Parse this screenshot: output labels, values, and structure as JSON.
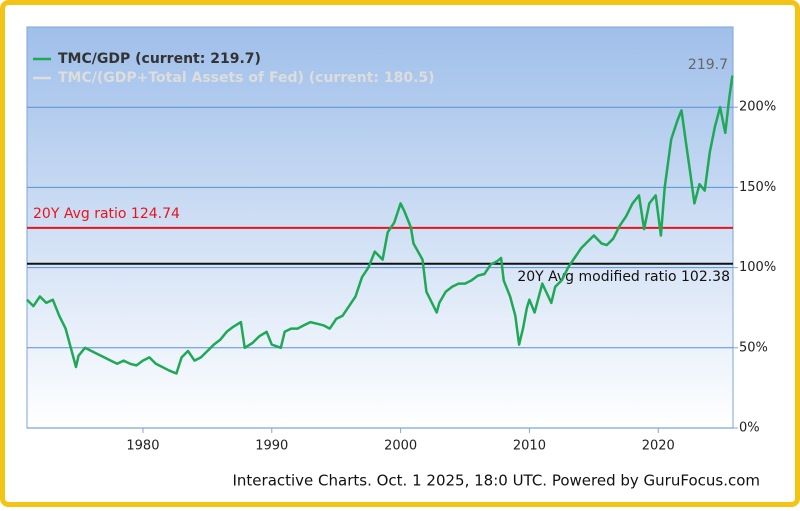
{
  "chart_data": {
    "type": "line",
    "series": [
      {
        "name": "TMC/GDP (current: 219.7)",
        "color": "#1fa855",
        "x": [
          1971,
          1971.5,
          1972,
          1972.5,
          1973,
          1973.5,
          1974,
          1974.4,
          1974.8,
          1975,
          1975.5,
          1976,
          1976.5,
          1977,
          1977.5,
          1978,
          1978.5,
          1979,
          1979.5,
          1980,
          1980.5,
          1981,
          1981.5,
          1982,
          1982.6,
          1983,
          1983.5,
          1984,
          1984.5,
          1985,
          1985.5,
          1986,
          1986.5,
          1987,
          1987.6,
          1987.9,
          1988.5,
          1989,
          1989.6,
          1990,
          1990.7,
          1991,
          1991.5,
          1992,
          1992.5,
          1993,
          1993.5,
          1994,
          1994.5,
          1995,
          1995.5,
          1996,
          1996.5,
          1997,
          1997.5,
          1998,
          1998.6,
          1999,
          1999.5,
          2000,
          2000.3,
          2000.8,
          2001,
          2001.7,
          2002,
          2002.8,
          2003,
          2003.5,
          2004,
          2004.5,
          2005,
          2005.5,
          2006,
          2006.5,
          2007,
          2007.5,
          2007.8,
          2008,
          2008.5,
          2008.9,
          2009.2,
          2009.5,
          2009.8,
          2010,
          2010.4,
          2011,
          2011.7,
          2012,
          2012.5,
          2013,
          2013.5,
          2014,
          2014.5,
          2015,
          2015.6,
          2016,
          2016.5,
          2017,
          2017.5,
          2018,
          2018.5,
          2018.9,
          2019.3,
          2019.8,
          2020.2,
          2020.5,
          2021,
          2021.5,
          2021.8,
          2022.2,
          2022.5,
          2022.8,
          2023.2,
          2023.6,
          2024,
          2024.4,
          2024.8,
          2025.2,
          2025.5,
          2025.75
        ],
        "values": [
          80,
          76,
          82,
          78,
          80,
          70,
          62,
          50,
          38,
          45,
          50,
          48,
          46,
          44,
          42,
          40,
          42,
          40,
          39,
          42,
          44,
          40,
          38,
          36,
          34,
          44,
          48,
          42,
          44,
          48,
          52,
          55,
          60,
          63,
          66,
          50,
          53,
          57,
          60,
          52,
          50,
          60,
          62,
          62,
          64,
          66,
          65,
          64,
          62,
          68,
          70,
          76,
          82,
          94,
          100,
          110,
          105,
          122,
          128,
          140,
          135,
          125,
          115,
          105,
          85,
          72,
          78,
          85,
          88,
          90,
          90,
          92,
          95,
          96,
          102,
          104,
          106,
          92,
          82,
          70,
          52,
          62,
          75,
          80,
          72,
          90,
          78,
          88,
          92,
          100,
          106,
          112,
          116,
          120,
          115,
          114,
          118,
          126,
          132,
          140,
          145,
          124,
          140,
          145,
          120,
          150,
          180,
          192,
          198,
          175,
          158,
          140,
          152,
          148,
          172,
          188,
          200,
          184,
          205,
          219.7
        ]
      }
    ],
    "hidden_series": [
      {
        "name": "TMC/(GDP+Total Assets of Fed) (current: 180.5)",
        "color": "#dddddd"
      }
    ],
    "reference_lines": [
      {
        "label": "20Y Avg ratio 124.74",
        "value": 124.74,
        "color": "#e8141c"
      },
      {
        "label": "20Y Avg modified ratio 102.38",
        "value": 102.38,
        "color": "#111111"
      }
    ],
    "xlim": [
      1971,
      2025.8
    ],
    "xticks": [
      1980,
      1990,
      2000,
      2010,
      2020
    ],
    "ylim": [
      0,
      250
    ],
    "yticks": [
      {
        "value": 0,
        "label": "0%"
      },
      {
        "value": 50,
        "label": "50%"
      },
      {
        "value": 100,
        "label": "100%"
      },
      {
        "value": 150,
        "label": "150%"
      },
      {
        "value": 200,
        "label": "200%"
      }
    ],
    "grid": true,
    "footer": "Interactive Charts. Oct. 1 2025, 18:0 UTC. Powered by GuruFocus.com"
  }
}
